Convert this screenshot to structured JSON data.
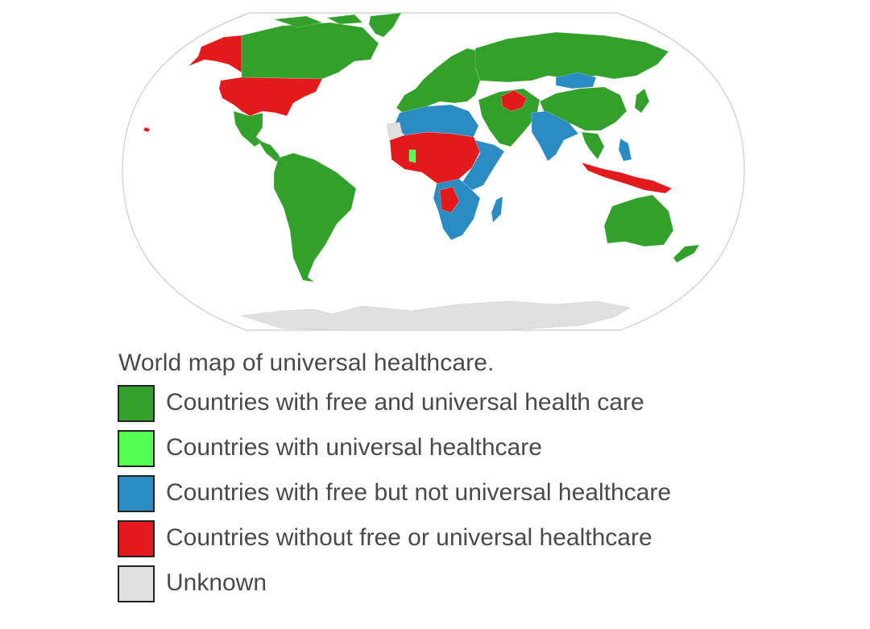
{
  "caption": "World map of universal healthcare.",
  "colors": {
    "free_universal": "#33a02c",
    "universal": "#52ff52",
    "free_not_universal": "#2b8cc4",
    "no_free_no_universal": "#e31a1c",
    "unknown": "#e0e0e0",
    "ocean": "#ffffff",
    "outline": "#cccccc"
  },
  "legend": [
    {
      "key": "free_universal",
      "label": "Countries with free and universal health care",
      "color": "#33a02c"
    },
    {
      "key": "universal",
      "label": "Countries with universal healthcare",
      "color": "#52ff52"
    },
    {
      "key": "free_not_universal",
      "label": "Countries with free but not universal healthcare",
      "color": "#2b8cc4"
    },
    {
      "key": "no_free_no_universal",
      "label": "Countries without free or universal healthcare",
      "color": "#e31a1c"
    },
    {
      "key": "unknown",
      "label": "Unknown",
      "color": "#e0e0e0"
    }
  ],
  "map": {
    "projection": "Robinson",
    "regions": [
      {
        "name": "Alaska",
        "category": "no_free_no_universal"
      },
      {
        "name": "Canada",
        "category": "free_universal"
      },
      {
        "name": "Greenland",
        "category": "free_universal"
      },
      {
        "name": "United States",
        "category": "no_free_no_universal"
      },
      {
        "name": "Mexico",
        "category": "free_universal"
      },
      {
        "name": "Central America",
        "category": "free_universal"
      },
      {
        "name": "South America",
        "category": "free_universal"
      },
      {
        "name": "Europe",
        "category": "free_universal"
      },
      {
        "name": "Russia",
        "category": "free_universal"
      },
      {
        "name": "Mongolia",
        "category": "free_not_universal"
      },
      {
        "name": "China",
        "category": "free_universal"
      },
      {
        "name": "Middle East",
        "category": "free_universal"
      },
      {
        "name": "Afghanistan",
        "category": "no_free_no_universal"
      },
      {
        "name": "India",
        "category": "free_not_universal"
      },
      {
        "name": "Southeast Asia",
        "category": "free_universal"
      },
      {
        "name": "Indonesia",
        "category": "no_free_no_universal"
      },
      {
        "name": "Philippines",
        "category": "free_not_universal"
      },
      {
        "name": "Australia",
        "category": "free_universal"
      },
      {
        "name": "New Zealand",
        "category": "free_universal"
      },
      {
        "name": "North Africa",
        "category": "free_not_universal"
      },
      {
        "name": "West and Central Africa",
        "category": "no_free_no_universal"
      },
      {
        "name": "Ghana",
        "category": "universal"
      },
      {
        "name": "East Africa",
        "category": "free_not_universal"
      },
      {
        "name": "Southern Africa",
        "category": "free_not_universal"
      },
      {
        "name": "Madagascar",
        "category": "free_not_universal"
      },
      {
        "name": "Western Sahara",
        "category": "unknown"
      },
      {
        "name": "Antarctica",
        "category": "unknown"
      }
    ]
  }
}
